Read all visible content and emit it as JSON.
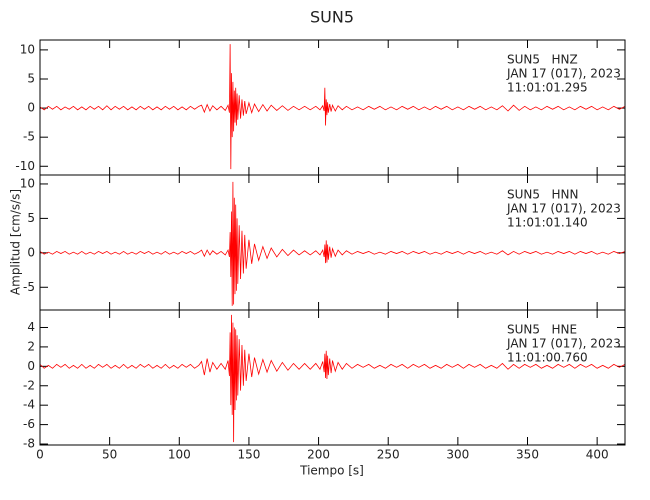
{
  "chart_data": {
    "type": "line",
    "title": "SUN5",
    "xlabel": "Tiempo [s]",
    "ylabel": "Amplitud [cm/s/s]",
    "xlim": [
      0,
      420
    ],
    "xticks": [
      0,
      50,
      100,
      150,
      200,
      250,
      300,
      350,
      400
    ],
    "x": [
      0,
      3,
      6,
      9,
      12,
      15,
      18,
      21,
      24,
      27,
      30,
      33,
      36,
      39,
      42,
      45,
      48,
      51,
      54,
      57,
      60,
      63,
      66,
      69,
      72,
      75,
      78,
      81,
      84,
      87,
      90,
      93,
      96,
      99,
      102,
      105,
      108,
      111,
      114,
      116,
      118,
      120,
      122,
      124,
      127,
      130,
      133,
      135,
      136,
      136.5,
      137,
      137.5,
      138,
      138.5,
      139,
      139.5,
      140,
      140.5,
      141,
      141.5,
      142,
      143,
      144,
      145,
      146,
      147,
      148,
      150,
      152,
      154,
      157,
      160,
      163,
      166,
      170,
      174,
      178,
      182,
      186,
      190,
      194,
      198,
      201,
      203,
      204,
      204.5,
      205,
      205.5,
      206,
      206.5,
      207,
      208,
      209,
      210,
      212,
      214,
      217,
      220,
      224,
      228,
      232,
      236,
      240,
      244,
      248,
      252,
      256,
      260,
      264,
      268,
      272,
      276,
      280,
      284,
      288,
      292,
      296,
      300,
      304,
      308,
      312,
      316,
      320,
      324,
      328,
      332,
      336,
      340,
      344,
      348,
      352,
      356,
      360,
      364,
      368,
      372,
      376,
      380,
      384,
      388,
      392,
      396,
      400,
      404,
      408,
      412,
      416,
      420
    ],
    "series": [
      {
        "name": "SUN5   HNZ",
        "date": "JAN 17 (017), 2023",
        "time": "11:01:01.295",
        "color": "#ff0000",
        "ylim": [
          -11.5,
          11.7
        ],
        "yticks": [
          -10,
          -5,
          0,
          5,
          10
        ],
        "values": [
          0.2,
          -0.3,
          0.3,
          -0.2,
          0.3,
          -0.3,
          0.2,
          -0.2,
          0.3,
          -0.3,
          0.2,
          -0.3,
          0.3,
          -0.2,
          0.3,
          -0.3,
          0.4,
          -0.3,
          0.3,
          -0.2,
          0.3,
          -0.3,
          0.2,
          -0.3,
          0.3,
          -0.2,
          0.3,
          -0.3,
          0.2,
          -0.3,
          0.3,
          -0.2,
          0.3,
          -0.3,
          0.2,
          -0.3,
          0.3,
          -0.2,
          0.3,
          0.5,
          -0.7,
          0.6,
          -0.5,
          0.4,
          -0.3,
          0.3,
          -0.4,
          0.5,
          -0.8,
          11,
          -10.5,
          6,
          -5,
          4.5,
          -4,
          3,
          -2.5,
          3.5,
          -3,
          2.5,
          -2,
          2.2,
          -1.8,
          1.5,
          -1.3,
          1.2,
          -1,
          0.9,
          -0.8,
          0.7,
          -0.6,
          0.6,
          -0.5,
          0.5,
          -0.4,
          0.4,
          -0.4,
          0.3,
          -0.3,
          0.3,
          -0.3,
          0.3,
          -0.3,
          0.4,
          -0.5,
          3.5,
          -3,
          1.5,
          -1.2,
          1,
          -0.8,
          0.7,
          -0.6,
          0.5,
          -0.5,
          0.4,
          -0.3,
          0.3,
          -0.3,
          0.2,
          -0.3,
          0.3,
          -0.2,
          0.3,
          -0.3,
          0.2,
          -0.3,
          0.3,
          -0.2,
          0.3,
          -0.3,
          0.2,
          -0.3,
          0.3,
          -0.2,
          0.3,
          -0.3,
          0.2,
          -0.3,
          0.3,
          -0.2,
          0.3,
          -0.3,
          0.2,
          -0.3,
          0.4,
          -0.5,
          0.5,
          -0.4,
          0.3,
          -0.3,
          0.2,
          -0.3,
          0.3,
          -0.2,
          0.3,
          -0.3,
          0.2,
          -0.3,
          0.3,
          -0.2,
          0.3,
          -0.3,
          0.2,
          -0.3,
          0.3,
          -0.2,
          0.3
        ]
      },
      {
        "name": "SUN5   HNN",
        "date": "JAN 17 (017), 2023",
        "time": "11:01:01.140",
        "color": "#ff0000",
        "ylim": [
          -8.3,
          11.3
        ],
        "yticks": [
          -5,
          0,
          5,
          10
        ],
        "values": [
          0.2,
          -0.2,
          0.1,
          -0.2,
          0.2,
          -0.1,
          0.2,
          -0.2,
          0.1,
          -0.2,
          0.2,
          -0.2,
          0.1,
          -0.2,
          0.2,
          -0.1,
          0.2,
          -0.2,
          0.1,
          -0.2,
          0.2,
          -0.2,
          0.1,
          -0.2,
          0.2,
          -0.1,
          0.2,
          -0.2,
          0.1,
          -0.2,
          0.2,
          -0.2,
          0.1,
          -0.2,
          0.2,
          -0.1,
          0.2,
          -0.2,
          0.1,
          0.4,
          -0.5,
          0.4,
          -0.3,
          0.3,
          -0.2,
          0.2,
          -0.3,
          0.4,
          -0.6,
          3,
          -3.5,
          6,
          -7.7,
          10.3,
          -7.5,
          8,
          -6,
          7,
          -5.5,
          5,
          -4.5,
          4,
          -3.8,
          3.2,
          -3,
          2.6,
          -2.3,
          1.9,
          -1.6,
          1.3,
          -1.1,
          0.9,
          -0.8,
          0.7,
          -0.6,
          0.5,
          -0.4,
          0.4,
          -0.3,
          0.3,
          -0.3,
          0.3,
          -0.3,
          0.4,
          -0.6,
          1.2,
          -1.5,
          1.8,
          -1.4,
          1.2,
          -1,
          0.9,
          -0.7,
          0.6,
          -0.5,
          0.4,
          -0.3,
          0.3,
          -0.2,
          0.2,
          -0.1,
          0.2,
          -0.2,
          0.1,
          -0.2,
          0.2,
          -0.1,
          0.2,
          -0.2,
          0.2,
          -0.1,
          0.2,
          -0.2,
          0.1,
          -0.2,
          0.2,
          -0.1,
          0.2,
          -0.2,
          0.2,
          -0.1,
          0.2,
          -0.2,
          0.1,
          -0.2,
          0.3,
          -0.3,
          0.2,
          -0.2,
          0.2,
          -0.1,
          0.2,
          -0.2,
          0.1,
          -0.2,
          0.2,
          -0.1,
          0.2,
          -0.2,
          0.2,
          -0.1,
          0.2,
          -0.2,
          0.1,
          -0.2,
          0.2,
          -0.1,
          0.2
        ]
      },
      {
        "name": "SUN5   HNE",
        "date": "JAN 17 (017), 2023",
        "time": "11:01:00.760",
        "color": "#ff0000",
        "ylim": [
          -8.1,
          5.8
        ],
        "yticks": [
          -8,
          -6,
          -4,
          -2,
          0,
          2,
          4
        ],
        "values": [
          0.2,
          -0.2,
          0.1,
          -0.2,
          0.2,
          -0.1,
          0.2,
          -0.2,
          0.1,
          -0.2,
          0.2,
          -0.2,
          0.1,
          -0.2,
          0.2,
          -0.1,
          0.2,
          -0.2,
          0.1,
          -0.2,
          0.2,
          -0.2,
          0.1,
          -0.2,
          0.2,
          -0.1,
          0.2,
          -0.2,
          0.1,
          -0.2,
          0.2,
          -0.2,
          0.1,
          -0.2,
          0.2,
          -0.1,
          0.2,
          -0.2,
          0.1,
          0.5,
          -0.9,
          0.8,
          -0.6,
          0.4,
          -0.3,
          0.3,
          -0.3,
          0.6,
          -1,
          3.5,
          -4,
          5.3,
          -5,
          4.5,
          -7.8,
          4,
          -4.5,
          3.8,
          -3.5,
          3.2,
          -3,
          2.8,
          -2.5,
          2.2,
          -2,
          1.7,
          -1.5,
          1.3,
          -1.1,
          0.9,
          -0.8,
          0.7,
          -0.6,
          0.6,
          -0.5,
          0.4,
          -0.4,
          0.3,
          -0.3,
          0.3,
          -0.3,
          0.3,
          -0.3,
          0.5,
          -0.6,
          1.3,
          -1.2,
          1.6,
          -1.3,
          1.1,
          -0.9,
          0.8,
          -0.7,
          0.6,
          -0.5,
          0.4,
          -0.3,
          0.3,
          -0.2,
          0.2,
          -0.1,
          0.2,
          -0.2,
          0.1,
          -0.2,
          0.2,
          -0.1,
          0.2,
          -0.2,
          0.2,
          -0.1,
          0.2,
          -0.2,
          0.1,
          -0.2,
          0.2,
          -0.1,
          0.2,
          -0.2,
          0.2,
          -0.1,
          0.2,
          -0.2,
          0.1,
          -0.2,
          0.3,
          -0.3,
          0.2,
          -0.2,
          0.2,
          -0.1,
          0.2,
          -0.2,
          0.1,
          -0.2,
          0.2,
          -0.1,
          0.2,
          -0.2,
          0.2,
          -0.1,
          0.2,
          -0.2,
          0.1,
          -0.2,
          0.2,
          -0.1,
          0.2
        ]
      }
    ]
  }
}
